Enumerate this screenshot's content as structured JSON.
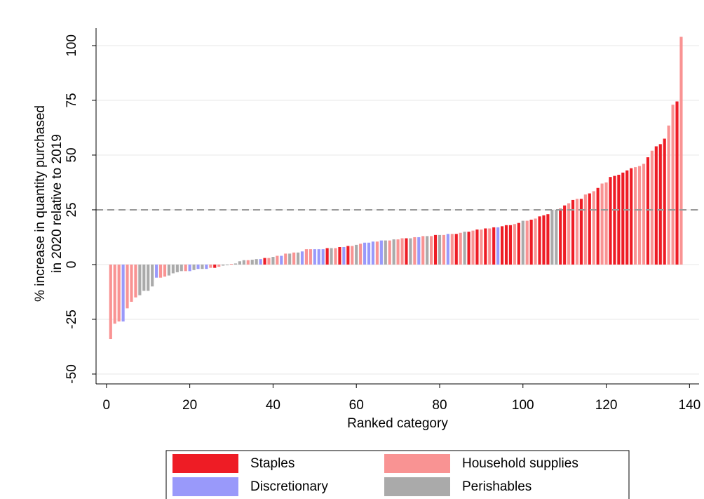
{
  "chart_data": {
    "type": "bar",
    "y_label": [
      "% increase in quantity purchased",
      "in 2020 relative to 2019"
    ],
    "x_label": "Ranked category",
    "xlim": [
      -2.5,
      142.3
    ],
    "xticks": [
      0,
      20,
      40,
      60,
      80,
      100,
      120,
      140
    ],
    "ylim": [
      -54.5,
      108
    ],
    "yticks": [
      -50,
      -25,
      0,
      25,
      50,
      75,
      100
    ],
    "grid": true,
    "reference_line": 25,
    "series": [
      {
        "name": "Staples",
        "color": "#ee1c25",
        "x": [
          26,
          38,
          53,
          56,
          58,
          72,
          79,
          84,
          87,
          89,
          91,
          93,
          95,
          96,
          97,
          99,
          102,
          104,
          105,
          106,
          109,
          110,
          112,
          114,
          116,
          118,
          121,
          122,
          123,
          124,
          125,
          126,
          130,
          132,
          133,
          134,
          137
        ],
        "values": [
          -1.5,
          3,
          7.5,
          8,
          8.5,
          12,
          13.5,
          14,
          15,
          16,
          16.5,
          17,
          17.5,
          18,
          18,
          19,
          20.5,
          22,
          22.5,
          23,
          25.5,
          27,
          29.5,
          30,
          32.5,
          35,
          40,
          40.5,
          41,
          42,
          43,
          44,
          49,
          54,
          55,
          57.5,
          74.5
        ]
      },
      {
        "name": "Household supplies",
        "color": "#f99393",
        "x": [
          1,
          2,
          3,
          5,
          6,
          7,
          13,
          14,
          19,
          25,
          27,
          30,
          34,
          39,
          41,
          43,
          45,
          48,
          49,
          55,
          59,
          61,
          65,
          68,
          70,
          71,
          74,
          76,
          78,
          81,
          83,
          85,
          88,
          90,
          92,
          98,
          101,
          103,
          111,
          113,
          115,
          117,
          119,
          120,
          127,
          128,
          129,
          131,
          135,
          136,
          138
        ],
        "values": [
          -34,
          -27,
          -26,
          -20,
          -17,
          -15,
          -6,
          -5.5,
          -3,
          -1.5,
          -1,
          0.3,
          2,
          3,
          4,
          5,
          5.5,
          7,
          7,
          7.5,
          8.5,
          9.5,
          10.5,
          11,
          11.5,
          12,
          12.5,
          13,
          13,
          13.5,
          14,
          14.5,
          15.5,
          16,
          16.5,
          18.5,
          20,
          21,
          28,
          30,
          32,
          33.5,
          37,
          37.5,
          44.5,
          45,
          46,
          52,
          63.5,
          73,
          104
        ]
      },
      {
        "name": "Discretionary",
        "color": "#9999fa",
        "x": [
          4,
          12,
          20,
          22,
          24,
          37,
          42,
          47,
          50,
          51,
          52,
          57,
          62,
          63,
          64,
          66,
          75,
          82,
          94
        ],
        "values": [
          -26,
          -6,
          -3,
          -2,
          -2,
          2.5,
          4,
          6,
          7,
          7,
          7,
          8,
          10,
          10,
          10.5,
          11,
          12.5,
          14,
          17
        ]
      },
      {
        "name": "Perishables",
        "color": "#aaaaaa",
        "x": [
          8,
          9,
          10,
          11,
          15,
          16,
          17,
          18,
          21,
          23,
          28,
          29,
          31,
          32,
          33,
          35,
          36,
          40,
          44,
          46,
          54,
          60,
          67,
          69,
          73,
          77,
          80,
          86,
          100,
          107,
          108
        ],
        "values": [
          -14,
          -12,
          -12,
          -10,
          -5,
          -4,
          -3.5,
          -3,
          -2.5,
          -2,
          -0.5,
          -0.3,
          0.5,
          1.5,
          2,
          2.2,
          2.5,
          3.5,
          5,
          5.5,
          7.5,
          9,
          11,
          11.5,
          12,
          13,
          13.5,
          15,
          20,
          25,
          25
        ]
      }
    ]
  }
}
